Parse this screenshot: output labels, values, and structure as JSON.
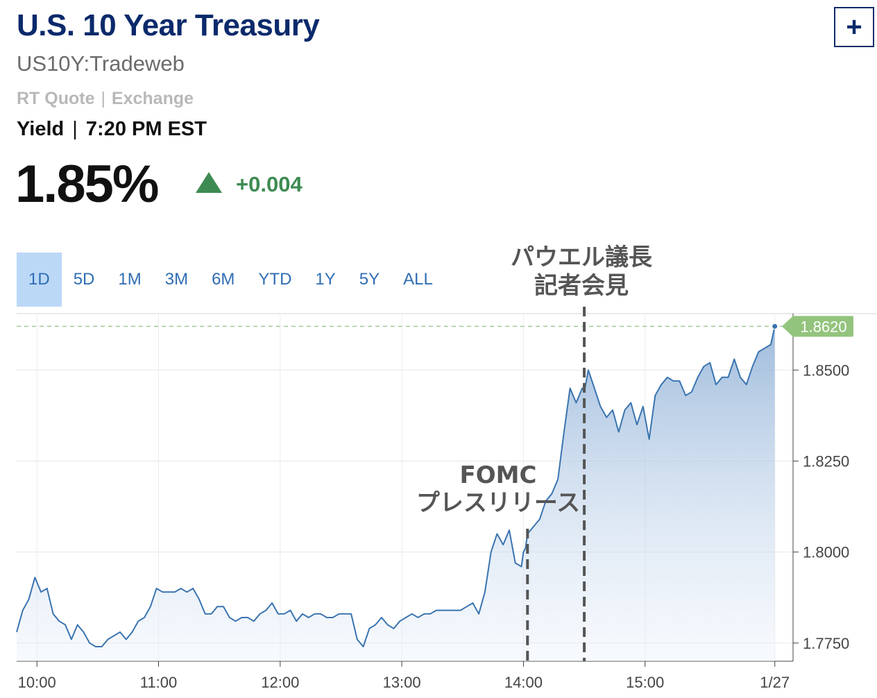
{
  "header": {
    "title": "U.S. 10 Year Treasury",
    "symbol": "US10Y:Tradeweb",
    "quote_type_a": "RT Quote",
    "quote_type_sep": "|",
    "quote_type_b": "Exchange",
    "yield_label": "Yield",
    "yield_sep": "|",
    "time": "7:20 PM EST",
    "price": "1.85%",
    "change": "+0.004",
    "add_label": "+"
  },
  "colors": {
    "title": "#0b2a6b",
    "up": "#3d8b52",
    "line": "#3a74b0",
    "tab_active_bg": "#bcd8f7",
    "last_badge": "#93c47d"
  },
  "tabs": [
    {
      "label": "1D",
      "active": true
    },
    {
      "label": "5D",
      "active": false
    },
    {
      "label": "1M",
      "active": false
    },
    {
      "label": "3M",
      "active": false
    },
    {
      "label": "6M",
      "active": false
    },
    {
      "label": "YTD",
      "active": false
    },
    {
      "label": "1Y",
      "active": false
    },
    {
      "label": "5Y",
      "active": false
    },
    {
      "label": "ALL",
      "active": false
    }
  ],
  "chart_data": {
    "type": "area",
    "x_tick_labels": [
      "10:00",
      "11:00",
      "12:00",
      "13:00",
      "14:00",
      "15:00",
      "1/27"
    ],
    "y_tick_labels": [
      "1.8500",
      "1.8250",
      "1.8000",
      "1.7750"
    ],
    "y_ticks": [
      1.85,
      1.825,
      1.8,
      1.775
    ],
    "xlim": [
      "09:50",
      "16:13"
    ],
    "ylim": [
      1.77,
      1.8655
    ],
    "last_value": 1.862,
    "last_value_label": "1.8620",
    "series": [
      {
        "x": [
          "09:50",
          "09:53",
          "09:56",
          "09:59",
          "10:02",
          "10:05",
          "10:08",
          "10:11",
          "10:14",
          "10:17",
          "10:20",
          "10:23",
          "10:26",
          "10:29",
          "10:32",
          "10:35",
          "10:38",
          "10:41",
          "10:44",
          "10:47",
          "10:50",
          "10:53",
          "10:56",
          "10:59",
          "11:02",
          "11:05",
          "11:08",
          "11:11",
          "11:14",
          "11:17",
          "11:20",
          "11:23",
          "11:26",
          "11:29",
          "11:32",
          "11:35",
          "11:38",
          "11:41",
          "11:44",
          "11:47",
          "11:50",
          "11:53",
          "11:56",
          "11:59",
          "12:02",
          "12:05",
          "12:08",
          "12:11",
          "12:14",
          "12:17",
          "12:20",
          "12:23",
          "12:26",
          "12:29",
          "12:32",
          "12:35",
          "12:38",
          "12:41",
          "12:44",
          "12:47",
          "12:50",
          "12:53",
          "12:56",
          "12:59",
          "13:02",
          "13:05",
          "13:08",
          "13:11",
          "13:14",
          "13:17",
          "13:20",
          "13:23",
          "13:26",
          "13:29",
          "13:32",
          "13:35",
          "13:38",
          "13:41",
          "13:44",
          "13:47",
          "13:50",
          "13:53",
          "13:56",
          "13:59",
          "14:00",
          "14:01",
          "14:02",
          "14:05",
          "14:08",
          "14:11",
          "14:14",
          "14:17",
          "14:20",
          "14:23",
          "14:26",
          "14:29",
          "14:30",
          "14:32",
          "14:35",
          "14:38",
          "14:41",
          "14:44",
          "14:47",
          "14:50",
          "14:53",
          "14:56",
          "14:59",
          "15:02",
          "15:05",
          "15:08",
          "15:11",
          "15:14",
          "15:17",
          "15:20",
          "15:23",
          "15:26",
          "15:29",
          "15:32",
          "15:35",
          "15:38",
          "15:41",
          "15:44",
          "15:47",
          "15:50",
          "15:53",
          "15:56",
          "15:59",
          "16:02",
          "16:04"
        ],
        "values": [
          1.778,
          1.784,
          1.787,
          1.793,
          1.789,
          1.79,
          1.783,
          1.781,
          1.78,
          1.776,
          1.78,
          1.778,
          1.775,
          1.774,
          1.774,
          1.776,
          1.777,
          1.778,
          1.776,
          1.778,
          1.781,
          1.782,
          1.785,
          1.79,
          1.789,
          1.789,
          1.789,
          1.79,
          1.789,
          1.79,
          1.787,
          1.783,
          1.783,
          1.785,
          1.785,
          1.782,
          1.781,
          1.782,
          1.782,
          1.781,
          1.783,
          1.784,
          1.786,
          1.783,
          1.783,
          1.784,
          1.781,
          1.783,
          1.782,
          1.783,
          1.783,
          1.782,
          1.782,
          1.783,
          1.783,
          1.783,
          1.776,
          1.774,
          1.779,
          1.78,
          1.782,
          1.78,
          1.779,
          1.781,
          1.782,
          1.783,
          1.782,
          1.783,
          1.783,
          1.784,
          1.784,
          1.784,
          1.784,
          1.784,
          1.785,
          1.786,
          1.783,
          1.789,
          1.8,
          1.805,
          1.802,
          1.806,
          1.797,
          1.796,
          1.8,
          1.801,
          1.805,
          1.807,
          1.809,
          1.814,
          1.816,
          1.82,
          1.833,
          1.845,
          1.841,
          1.845,
          1.844,
          1.85,
          1.845,
          1.84,
          1.837,
          1.839,
          1.833,
          1.839,
          1.841,
          1.835,
          1.84,
          1.831,
          1.843,
          1.846,
          1.848,
          1.847,
          1.847,
          1.843,
          1.844,
          1.848,
          1.851,
          1.852,
          1.846,
          1.848,
          1.848,
          1.853,
          1.848,
          1.846,
          1.851,
          1.855,
          1.856,
          1.857,
          1.862
        ]
      }
    ],
    "annotations": [
      {
        "label_lines": [
          "FOMC",
          "プレスリリース"
        ],
        "x": "14:02"
      },
      {
        "label_lines": [
          "パウエル議長",
          "記者会見"
        ],
        "x": "14:30"
      }
    ]
  }
}
